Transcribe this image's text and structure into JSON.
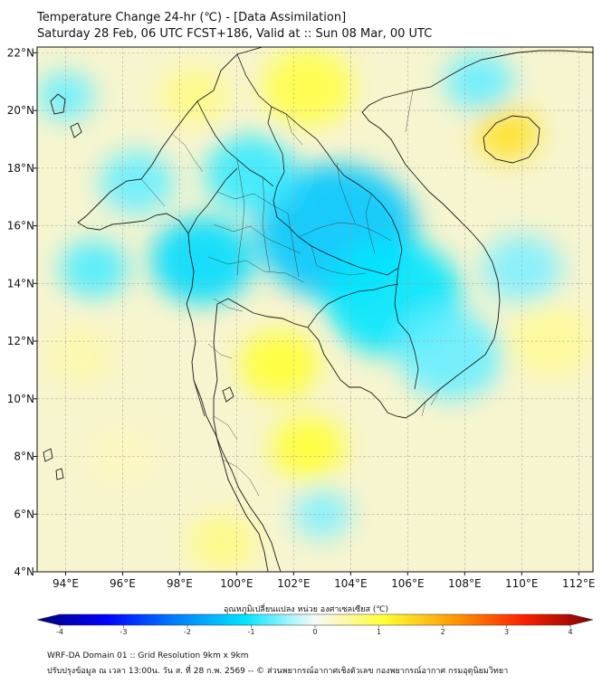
{
  "title": {
    "line1": "Temperature Change 24-hr (℃) - [Data Assimilation]",
    "line2": "Saturday 28 Feb, 06 UTC FCST+186, Valid at :: Sun 08 Mar, 00 UTC"
  },
  "map": {
    "lon_range": [
      93,
      112.5
    ],
    "lat_range": [
      4,
      22.2
    ],
    "x_ticks": [
      {
        "value": 94,
        "label": "94°E"
      },
      {
        "value": 96,
        "label": "96°E"
      },
      {
        "value": 98,
        "label": "98°E"
      },
      {
        "value": 100,
        "label": "100°E"
      },
      {
        "value": 102,
        "label": "102°E"
      },
      {
        "value": 104,
        "label": "104°E"
      },
      {
        "value": 106,
        "label": "106°E"
      },
      {
        "value": 108,
        "label": "108°E"
      },
      {
        "value": 110,
        "label": "110°E"
      },
      {
        "value": 112,
        "label": "112°E"
      }
    ],
    "y_ticks": [
      {
        "value": 22,
        "label": "22°N"
      },
      {
        "value": 20,
        "label": "20°N"
      },
      {
        "value": 18,
        "label": "18°N"
      },
      {
        "value": 16,
        "label": "16°N"
      },
      {
        "value": 14,
        "label": "14°N"
      },
      {
        "value": 12,
        "label": "12°N"
      },
      {
        "value": 10,
        "label": "10°N"
      },
      {
        "value": 8,
        "label": "8°N"
      },
      {
        "value": 6,
        "label": "6°N"
      },
      {
        "value": 4,
        "label": "4°N"
      }
    ],
    "blobs": [
      {
        "lon": 103.5,
        "lat": 15.8,
        "r": 2.8,
        "value": -1.3
      },
      {
        "lon": 105.5,
        "lat": 13.5,
        "r": 2.4,
        "value": -1.0
      },
      {
        "lon": 98.8,
        "lat": 14.8,
        "r": 1.8,
        "value": -1.1
      },
      {
        "lon": 100.5,
        "lat": 17.8,
        "r": 1.6,
        "value": -0.8
      },
      {
        "lon": 96.5,
        "lat": 17.5,
        "r": 1.3,
        "value": -0.6
      },
      {
        "lon": 95.0,
        "lat": 14.5,
        "r": 1.2,
        "value": -0.7
      },
      {
        "lon": 107.5,
        "lat": 11.5,
        "r": 1.8,
        "value": -0.6
      },
      {
        "lon": 110.0,
        "lat": 14.5,
        "r": 1.4,
        "value": -0.5
      },
      {
        "lon": 108.5,
        "lat": 21.0,
        "r": 1.2,
        "value": -0.6
      },
      {
        "lon": 94.0,
        "lat": 20.5,
        "r": 1.0,
        "value": -0.6
      },
      {
        "lon": 103.0,
        "lat": 6.0,
        "r": 1.0,
        "value": -0.5
      },
      {
        "lon": 109.5,
        "lat": 19.2,
        "r": 1.1,
        "value": 1.3
      },
      {
        "lon": 102.5,
        "lat": 20.8,
        "r": 1.6,
        "value": 0.9
      },
      {
        "lon": 98.5,
        "lat": 20.5,
        "r": 1.2,
        "value": 0.6
      },
      {
        "lon": 101.5,
        "lat": 11.2,
        "r": 1.4,
        "value": 1.0
      },
      {
        "lon": 102.5,
        "lat": 8.3,
        "r": 1.3,
        "value": 1.0
      },
      {
        "lon": 99.5,
        "lat": 5.0,
        "r": 1.2,
        "value": 0.6
      },
      {
        "lon": 94.5,
        "lat": 11.5,
        "r": 1.2,
        "value": 0.4
      },
      {
        "lon": 111.0,
        "lat": 12.0,
        "r": 1.5,
        "value": 0.5
      },
      {
        "lon": 96.0,
        "lat": 8.0,
        "r": 1.2,
        "value": 0.3
      }
    ]
  },
  "colorbar": {
    "title": "อุณหภูมิเปลี่ยนแปลง หน่วย องศาเซลเซียส (℃)",
    "min": -4,
    "max": 4,
    "ticks": [
      {
        "value": -4,
        "label": "-4"
      },
      {
        "value": -3,
        "label": "-3"
      },
      {
        "value": -2,
        "label": "-2"
      },
      {
        "value": -1,
        "label": "-1"
      },
      {
        "value": 0,
        "label": "0"
      },
      {
        "value": 1,
        "label": "1"
      },
      {
        "value": 2,
        "label": "2"
      },
      {
        "value": 3,
        "label": "3"
      },
      {
        "value": 4,
        "label": "4"
      }
    ],
    "stops": [
      {
        "value": -4,
        "color": "#00007f"
      },
      {
        "value": -3,
        "color": "#0000ff"
      },
      {
        "value": -2,
        "color": "#0080ff"
      },
      {
        "value": -1,
        "color": "#00e5ff"
      },
      {
        "value": -0.3,
        "color": "#b5f5ff"
      },
      {
        "value": 0,
        "color": "#f5fbf8"
      },
      {
        "value": 0.3,
        "color": "#fdf7c0"
      },
      {
        "value": 1,
        "color": "#ffff33"
      },
      {
        "value": 2,
        "color": "#ff9a00"
      },
      {
        "value": 3,
        "color": "#ff2000"
      },
      {
        "value": 4,
        "color": "#7f0000"
      }
    ]
  },
  "footer": {
    "line1": "WRF-DA Domain 01 :: Grid Resolution 9km x 9km",
    "line2": "ปรับปรุงข้อมูล ณ เวลา 13:00น. วัน ส. ที่ 28 ก.พ. 2569 -- © ส่วนพยากรณ์อากาศเชิงตัวเลข กองพยากรณ์อากาศ กรมอุตุนิยมวิทยา"
  }
}
